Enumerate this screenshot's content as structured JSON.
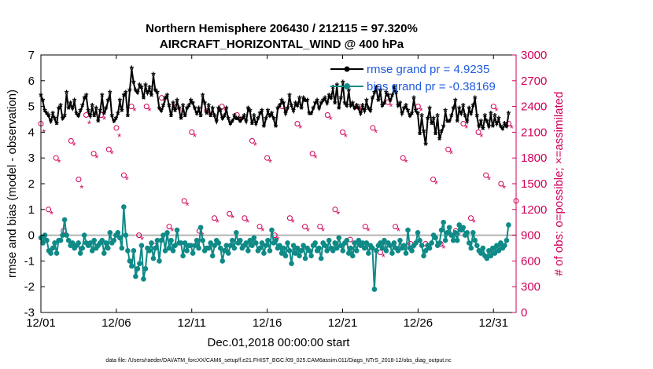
{
  "chart_data": {
    "type": "line",
    "title": "Northern Hemisphere 206430 / 212115 = 97.320%",
    "subtitle": "AIRCRAFT_HORIZONTAL_WIND @ 400 hPa",
    "xlabel": "Dec.01,2018 00:00:00 start",
    "ylabel": "rmse and bias (model - observation)",
    "ylabel_right": "# of obs: o=possible; ×=assimilated",
    "footnote": "data file: /Users/raeder/DAI/ATM_forcXX/CAM6_setup/f.e21.FHIST_BGC.f09_025.CAM6assim.011/Diags_NTrS_2018-12/obs_diag_output.nc",
    "xlim": [
      0,
      31.5
    ],
    "ylim": [
      -3,
      7
    ],
    "ylim_right": [
      0,
      3000
    ],
    "x_ticks": [
      0,
      5,
      10,
      15,
      20,
      25,
      30
    ],
    "x_tick_labels": [
      "12/01",
      "12/06",
      "12/11",
      "12/16",
      "12/21",
      "12/26",
      "12/31"
    ],
    "y_ticks": [
      -3,
      -2,
      -1,
      0,
      1,
      2,
      3,
      4,
      5,
      6,
      7
    ],
    "y_tick_labels": [
      "-3",
      "-2",
      "-1",
      "0",
      "1",
      "2",
      "3",
      "4",
      "5",
      "6",
      "7"
    ],
    "y2_ticks": [
      0,
      300,
      600,
      900,
      1200,
      1500,
      1800,
      2100,
      2400,
      2700,
      3000
    ],
    "y2_tick_labels": [
      "0",
      "300",
      "600",
      "900",
      "1200",
      "1500",
      "1800",
      "2100",
      "2400",
      "2700",
      "3000"
    ],
    "legend": {
      "position": "top-right",
      "entries": [
        "rmse grand pr = 4.9235",
        "bias grand pr = -0.38169"
      ]
    },
    "colors": {
      "rmse": "#000000",
      "bias": "#0f8a87",
      "obs": "#d0005a",
      "zero_line": "#b3b3b3",
      "legend_text": "#1f5ae0"
    },
    "series": [
      {
        "name": "rmse",
        "values": [
          5.4,
          5.2,
          4.8,
          4.7,
          4.6,
          4.4,
          4.7,
          4.5,
          4.3,
          4.9,
          5.0,
          4.5,
          4.6,
          5.5,
          4.9,
          5.1,
          4.9,
          5.2,
          4.7,
          4.6,
          4.8,
          5.0,
          5.3,
          5.4,
          4.8,
          4.6,
          5.0,
          4.6,
          4.9,
          4.4,
          4.8,
          5.4,
          4.7,
          4.9,
          5.2,
          5.5,
          4.6,
          4.4,
          4.5,
          4.7,
          5.2,
          4.8,
          5.4,
          5.5,
          4.6,
          5.6,
          6.45,
          5.9,
          5.6,
          5.5,
          5.8,
          5.7,
          5.3,
          5.8,
          5.5,
          5.7,
          5.4,
          6.2,
          5.6,
          5.5,
          4.9,
          4.8,
          5.0,
          5.3,
          5.4,
          5.0,
          4.6,
          5.1,
          4.8,
          5.2,
          4.9,
          4.5,
          5.0,
          4.6,
          4.9,
          5.0,
          5.2,
          5.1,
          4.9,
          4.7,
          4.9,
          4.6,
          5.4,
          5.1,
          4.7,
          5.0,
          4.6,
          4.9,
          4.6,
          4.4,
          4.9,
          4.8,
          4.5,
          4.6,
          4.9,
          4.5,
          4.3,
          4.4,
          4.6,
          4.5,
          4.5,
          4.4,
          4.5,
          4.6,
          4.4,
          4.9,
          4.8,
          4.3,
          4.6,
          4.3,
          4.5,
          4.7,
          4.8,
          4.2,
          4.5,
          4.8,
          4.6,
          4.7,
          4.5,
          4.2,
          4.9,
          5.0,
          5.2,
          5.1,
          4.7,
          4.9,
          5.4,
          5.0,
          4.8,
          5.1,
          5.0,
          5.3,
          4.9,
          5.3,
          5.2,
          5.2,
          4.7,
          4.7,
          4.9,
          5.1,
          5.2,
          4.9,
          5.1,
          5.2,
          5.3,
          5.1,
          5.4,
          5.3,
          5.7,
          5.1,
          5.8,
          4.9,
          5.3,
          5.9,
          5.1,
          5.0,
          5.6,
          5.0,
          5.1,
          4.9,
          5.0,
          4.9,
          4.7,
          5.0,
          4.8,
          5.2,
          4.9,
          4.8,
          5.3,
          5.5,
          5.7,
          5.2,
          5.6,
          5.0,
          5.1,
          5.5,
          5.4,
          5.2,
          5.4,
          5.7,
          5.5,
          5.0,
          5.1,
          4.7,
          4.9,
          5.0,
          4.8,
          4.6,
          4.7,
          5.3,
          4.8,
          4.7,
          3.9,
          4.6,
          4.0,
          3.5,
          4.5,
          4.9,
          4.3,
          4.5,
          3.9,
          4.6,
          3.7,
          4.0,
          4.2,
          4.8,
          4.4,
          4.4,
          4.6,
          4.9,
          5.2,
          4.4,
          4.9,
          4.7,
          5.0,
          4.6,
          4.4,
          4.9,
          4.7,
          5.0,
          5.3,
          4.6,
          4.2,
          4.4,
          4.1,
          4.6,
          4.4,
          4.2,
          4.7,
          4.2,
          4.6,
          4.3,
          4.5,
          4.2,
          4.1,
          4.3,
          4.2,
          4.7
        ]
      },
      {
        "name": "bias",
        "values": [
          -0.1,
          -0.3,
          0.0,
          -0.2,
          -0.6,
          -0.7,
          -0.5,
          -0.3,
          -0.7,
          -0.2,
          -0.2,
          0.0,
          0.6,
          0.0,
          -0.2,
          -0.4,
          -0.3,
          -0.5,
          -0.4,
          -0.3,
          -0.7,
          -0.5,
          0.0,
          -0.3,
          -0.4,
          -0.3,
          -0.6,
          -0.2,
          -0.5,
          -0.4,
          -0.3,
          -0.2,
          -0.7,
          -0.3,
          -0.5,
          0.1,
          -0.3,
          -0.2,
          0.0,
          0.1,
          -0.1,
          -0.5,
          1.1,
          0.0,
          -0.6,
          -1.0,
          -1.2,
          -0.6,
          -1.6,
          -1.3,
          -1.1,
          -0.4,
          -1.7,
          -1.3,
          -0.5,
          -0.6,
          -0.3,
          -0.9,
          -0.5,
          -0.2,
          -1.0,
          -0.2,
          0.0,
          -0.6,
          0.1,
          -0.5,
          -0.2,
          -0.6,
          -0.4,
          0.2,
          -0.3,
          -0.3,
          -0.8,
          -0.3,
          -0.6,
          -0.4,
          -0.4,
          -0.7,
          -0.4,
          -0.2,
          -0.5,
          0.3,
          -0.2,
          -0.6,
          -0.5,
          -0.5,
          -0.3,
          -0.8,
          -0.4,
          -0.2,
          -0.3,
          -0.5,
          -1.0,
          -0.6,
          -0.4,
          -0.7,
          -0.4,
          -0.2,
          -0.5,
          0.1,
          -0.3,
          -0.2,
          -0.5,
          -0.4,
          -0.3,
          -0.6,
          -0.2,
          -0.4,
          -0.1,
          -0.3,
          -0.6,
          -0.5,
          -0.3,
          -0.7,
          -0.4,
          -0.2,
          -0.6,
          0.2,
          -0.3,
          -0.2,
          -0.5,
          -0.4,
          -0.7,
          -0.5,
          -0.8,
          -0.3,
          -0.6,
          -1.1,
          -0.4,
          -0.7,
          -0.5,
          -0.8,
          -0.6,
          -0.4,
          -0.9,
          -0.5,
          -0.6,
          -0.8,
          -0.4,
          -0.3,
          -0.6,
          -0.5,
          -0.9,
          -0.3,
          -0.4,
          -0.6,
          -0.2,
          -0.5,
          -0.6,
          -0.3,
          -0.5,
          -0.1,
          -0.4,
          -0.6,
          -0.3,
          -0.2,
          -0.7,
          -0.5,
          -0.8,
          -0.3,
          -0.6,
          -0.2,
          -0.4,
          -0.3,
          -0.5,
          -0.3,
          -0.7,
          -0.4,
          -0.5,
          -2.1,
          -0.6,
          -0.4,
          -0.3,
          -0.5,
          -0.2,
          -0.6,
          -0.3,
          -0.4,
          -0.7,
          -0.3,
          -0.5,
          -0.6,
          -0.2,
          -0.5,
          -0.4,
          -0.7,
          0.2,
          -0.5,
          -0.6,
          -0.4,
          -0.3,
          0.1,
          -0.2,
          -0.4,
          -0.8,
          -0.6,
          -0.4,
          -0.5,
          -0.3,
          0.0,
          -0.1,
          -0.4,
          -0.3,
          0.2,
          0.5,
          -0.2,
          0.1,
          0.3,
          0.0,
          -0.2,
          0.1,
          -0.2,
          0.4,
          0.2,
          0.3,
          0.0,
          0.1,
          -0.3,
          -0.5,
          0.1,
          -0.2,
          -0.4,
          -0.6,
          -0.7,
          -0.5,
          -0.8,
          -0.9,
          -0.6,
          -0.8,
          -0.5,
          -0.7,
          -0.4,
          -0.6,
          -0.3,
          -0.5,
          -0.4,
          -0.2,
          0.4
        ]
      },
      {
        "name": "obs_possible",
        "axis": "right",
        "x": [
          0.0,
          0.5,
          1.0,
          1.5,
          2.0,
          2.5,
          3.0,
          3.5,
          4.0,
          4.5,
          5.0,
          5.5,
          6.0,
          6.5,
          7.0,
          7.5,
          8.0,
          8.5,
          9.0,
          9.5,
          10.0,
          10.5,
          11.0,
          11.5,
          12.0,
          12.5,
          13.0,
          13.5,
          14.0,
          14.5,
          15.0,
          15.5,
          16.0,
          16.5,
          17.0,
          17.5,
          18.0,
          18.5,
          19.0,
          19.5,
          20.0,
          20.5,
          21.0,
          21.5,
          22.0,
          22.5,
          23.0,
          23.5,
          24.0,
          24.5,
          25.0,
          25.5,
          26.0,
          26.5,
          27.0,
          27.5,
          28.0,
          28.5,
          29.0,
          29.5,
          30.0,
          30.5,
          31.0,
          31.5
        ],
        "values": [
          2200,
          1200,
          1800,
          950,
          2000,
          1550,
          2300,
          1850,
          2300,
          1900,
          2150,
          1600,
          2400,
          900,
          2400,
          780,
          2500,
          1000,
          2400,
          1300,
          2100,
          950,
          2350,
          1100,
          2400,
          1150,
          2300,
          1100,
          2000,
          1000,
          1800,
          900,
          2400,
          1100,
          2200,
          1000,
          1850,
          1000,
          2300,
          1200,
          2100,
          850,
          2400,
          1000,
          2150,
          700,
          2450,
          1000,
          1800,
          800,
          2400,
          800,
          1550,
          800,
          1900,
          950,
          2200,
          1100,
          2100,
          1600,
          2400,
          1500,
          2200,
          1300
        ]
      },
      {
        "name": "obs_assimilated",
        "axis": "right",
        "x": [
          0.2,
          0.7,
          1.2,
          1.7,
          2.2,
          2.7,
          3.2,
          3.7,
          4.2,
          4.7,
          5.2,
          5.7,
          6.2,
          6.7,
          7.2,
          7.7,
          8.2,
          8.7,
          9.2,
          9.7,
          10.2,
          10.7,
          11.2,
          11.7,
          12.2,
          12.7,
          13.2,
          13.7,
          14.2,
          14.7,
          15.2,
          15.7,
          16.2,
          16.7,
          17.2,
          17.7,
          18.2,
          18.7,
          19.2,
          19.7,
          20.2,
          20.7,
          21.2,
          21.7,
          22.2,
          22.7,
          23.2,
          23.7,
          24.2,
          24.7,
          25.2,
          25.7,
          26.2,
          26.7,
          27.2,
          27.7,
          28.2,
          28.7,
          29.2,
          29.7,
          30.2,
          30.7,
          31.2
        ],
        "values": [
          2100,
          1150,
          1750,
          900,
          1950,
          1450,
          2200,
          1800,
          2250,
          1850,
          2050,
          1550,
          2350,
          850,
          2350,
          750,
          2450,
          950,
          2350,
          1250,
          2050,
          900,
          2300,
          1050,
          2350,
          1100,
          2250,
          1050,
          1950,
          950,
          1750,
          850,
          2350,
          1050,
          2150,
          950,
          1800,
          950,
          2250,
          1150,
          2050,
          800,
          2350,
          950,
          2100,
          650,
          2400,
          950,
          1750,
          750,
          2350,
          750,
          1500,
          750,
          1850,
          900,
          2150,
          1050,
          2050,
          1550,
          2350,
          1450,
          2150
        ]
      }
    ]
  }
}
